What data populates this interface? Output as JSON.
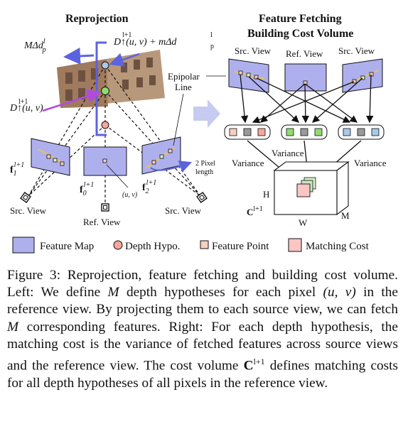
{
  "left_panel": {
    "title": "Reprojection",
    "math_m_delta": "MΔd",
    "math_m_delta_sup": "l",
    "math_m_delta_sub": "p",
    "math_top_depth": "D↑(u, v) + mΔd",
    "math_top_sup1": "l+1",
    "math_top_sup2": "l",
    "math_top_sub": "p",
    "math_left_depth": "D↑(u, v)",
    "math_left_sup": "l+1",
    "f1": "f",
    "f1_sub": "1",
    "f1_sup": "l+1",
    "f0": "f",
    "f0_sub": "0",
    "f0_sup": "l+1",
    "f2": "f",
    "f2_sub": "2",
    "f2_sup": "l+1",
    "uv_label": "(u, v)",
    "pixel_length_line1": "2 Pixel",
    "pixel_length_line2": "length",
    "src_view_left": "Src. View",
    "ref_view": "Ref. View",
    "src_view_right": "Src. View",
    "epipolar_line1": "Epipolar",
    "epipolar_line2": "Line"
  },
  "right_panel": {
    "title_line1": "Feature Fetching",
    "title_line2": "Building Cost Volume",
    "src_view_left": "Src. View",
    "ref_view": "Ref. View",
    "src_view_right": "Src. View",
    "variance_center": "Variance",
    "variance_left": "Variance",
    "variance_right": "Variance",
    "axis_h": "H",
    "axis_w": "W",
    "axis_m": "M",
    "volume_label": "C",
    "volume_sup": "l+1"
  },
  "legend": {
    "feature_map": "Feature Map",
    "depth_hypo": "Depth Hypo.",
    "feature_point": "Feature Point",
    "matching_cost": "Matching Cost"
  },
  "colors": {
    "feature_map": "#aeb0ee",
    "depth_top": "#a9c8ea",
    "depth_mid": "#8fdc6e",
    "depth_low": "#f4a79a",
    "feature_point": "#f7cfc0",
    "matching_cost": "#f9c6c3",
    "arrow_blue": "#5b63e0",
    "arrow_purple": "#b14be0",
    "node_green": "#8fdc6e",
    "node_blue": "#a9c8ea",
    "node_gray": "#9a9a9a"
  },
  "caption": {
    "figure_num": "Figure 3:",
    "p1": " Reprojection, feature fetching and building cost volume. Left: We define ",
    "M1": "M",
    "p2": " depth hypotheses for each pixel ",
    "uv": "(u, v)",
    "p3": " in the reference view.  By projecting them to each source view, we can fetch ",
    "M2": "M",
    "p4": " corresponding features. Right: For each depth hypothesis, the matching cost is the variance of fetched features across source views and the reference view. The cost volume ",
    "C": "C",
    "C_sup": "l+1",
    "p5": " defines matching costs for all depth hypotheses of all pixels in the reference view."
  }
}
